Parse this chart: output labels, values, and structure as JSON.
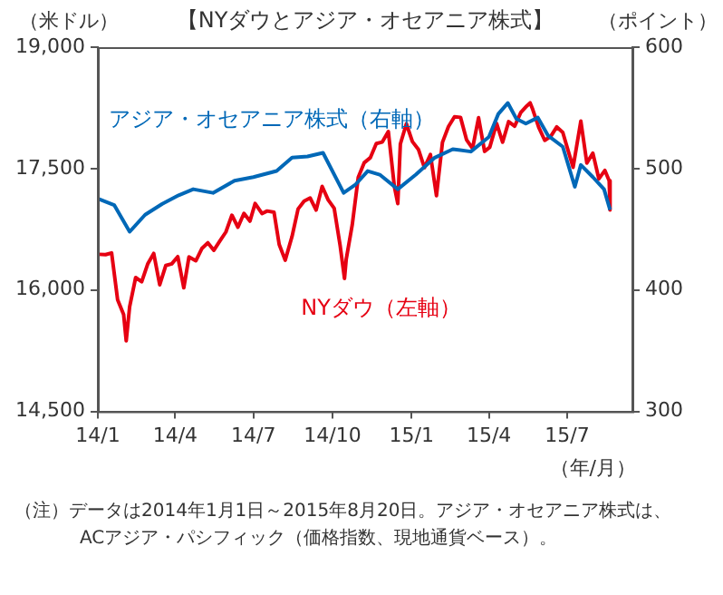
{
  "chart_data": {
    "type": "line",
    "title": "【NYダウとアジア・オセアニア株式】",
    "ylabel": "（米ドル）",
    "y2label": "（ポイント）",
    "xlabel": "（年/月）",
    "xlim": [
      "2014-01-01",
      "2015-09-15"
    ],
    "xticks": [
      {
        "value": "2014-01-01",
        "label": "14/1"
      },
      {
        "value": "2014-04-01",
        "label": "14/4"
      },
      {
        "value": "2014-07-01",
        "label": "14/7"
      },
      {
        "value": "2014-10-01",
        "label": "14/10"
      },
      {
        "value": "2015-01-01",
        "label": "15/1"
      },
      {
        "value": "2015-04-01",
        "label": "15/4"
      },
      {
        "value": "2015-07-01",
        "label": "15/7"
      }
    ],
    "ylim": [
      14500,
      19000
    ],
    "yticks": [
      {
        "value": 14500,
        "label": "14,500"
      },
      {
        "value": 16000,
        "label": "16,000"
      },
      {
        "value": 17500,
        "label": "17,500"
      },
      {
        "value": 19000,
        "label": "19,000"
      }
    ],
    "y2lim": [
      300,
      600
    ],
    "y2ticks": [
      300,
      400,
      500,
      600
    ],
    "grid": false,
    "legend": false,
    "marker": "none",
    "line_style": "solid",
    "series": [
      {
        "name": "NYダウ（左軸）",
        "color": "#e60012",
        "x": [
          "2014-01-02",
          "2014-01-10",
          "2014-01-17",
          "2014-01-24",
          "2014-01-31",
          "2014-02-03",
          "2014-02-07",
          "2014-02-14",
          "2014-02-21",
          "2014-02-28",
          "2014-03-07",
          "2014-03-14",
          "2014-03-21",
          "2014-03-28",
          "2014-04-04",
          "2014-04-11",
          "2014-04-17",
          "2014-04-25",
          "2014-05-02",
          "2014-05-09",
          "2014-05-16",
          "2014-05-23",
          "2014-05-30",
          "2014-06-06",
          "2014-06-13",
          "2014-06-20",
          "2014-06-27",
          "2014-07-03",
          "2014-07-11",
          "2014-07-17",
          "2014-07-25",
          "2014-07-31",
          "2014-08-07",
          "2014-08-15",
          "2014-08-22",
          "2014-08-29",
          "2014-09-05",
          "2014-09-12",
          "2014-09-19",
          "2014-09-26",
          "2014-10-03",
          "2014-10-10",
          "2014-10-15",
          "2014-10-17",
          "2014-10-24",
          "2014-10-31",
          "2014-11-07",
          "2014-11-14",
          "2014-11-21",
          "2014-11-28",
          "2014-12-05",
          "2014-12-12",
          "2014-12-16",
          "2014-12-19",
          "2014-12-26",
          "2015-01-02",
          "2015-01-09",
          "2015-01-16",
          "2015-01-23",
          "2015-01-30",
          "2015-02-06",
          "2015-02-13",
          "2015-02-20",
          "2015-02-27",
          "2015-03-06",
          "2015-03-13",
          "2015-03-20",
          "2015-03-27",
          "2015-04-02",
          "2015-04-10",
          "2015-04-17",
          "2015-04-24",
          "2015-05-01",
          "2015-05-08",
          "2015-05-15",
          "2015-05-19",
          "2015-05-22",
          "2015-05-29",
          "2015-06-05",
          "2015-06-12",
          "2015-06-19",
          "2015-06-26",
          "2015-07-02",
          "2015-07-08",
          "2015-07-17",
          "2015-07-24",
          "2015-07-31",
          "2015-08-07",
          "2015-08-14",
          "2015-08-19",
          "2015-08-20"
        ],
        "values": [
          16441,
          16437,
          16458,
          15879,
          15698,
          15373,
          15794,
          16154,
          16103,
          16321,
          16452,
          16065,
          16302,
          16323,
          16412,
          16027,
          16408,
          16361,
          16512,
          16583,
          16491,
          16606,
          16717,
          16924,
          16776,
          16947,
          16851,
          17068,
          16944,
          16976,
          16961,
          16563,
          16368,
          16663,
          17001,
          17098,
          17137,
          16988,
          17280,
          17113,
          17009,
          16544,
          16142,
          16380,
          16805,
          17391,
          17573,
          17634,
          17810,
          17828,
          17958,
          17280,
          17068,
          17804,
          18053,
          17833,
          17737,
          17512,
          17673,
          17165,
          17825,
          18019,
          18140,
          18133,
          17856,
          17749,
          18128,
          17713,
          17763,
          18057,
          17826,
          18080,
          18024,
          18191,
          18272,
          18312,
          18232,
          18010,
          17849,
          17898,
          18015,
          17947,
          17730,
          17515,
          18086,
          17568,
          17690,
          17373,
          17477,
          17349,
          16990
        ]
      },
      {
        "name": "アジア・オセアニア株式（右軸）",
        "color": "#0068b7",
        "axis": "y2",
        "x": [
          "2014-01-02",
          "2014-01-20",
          "2014-02-07",
          "2014-02-25",
          "2014-03-17",
          "2014-04-05",
          "2014-04-22",
          "2014-05-15",
          "2014-06-09",
          "2014-07-01",
          "2014-07-28",
          "2014-08-15",
          "2014-09-02",
          "2014-09-20",
          "2014-10-14",
          "2014-10-28",
          "2014-11-11",
          "2014-11-25",
          "2014-12-16",
          "2015-01-06",
          "2015-01-28",
          "2015-02-18",
          "2015-03-11",
          "2015-04-01",
          "2015-04-12",
          "2015-04-23",
          "2015-05-03",
          "2015-05-14",
          "2015-05-28",
          "2015-06-09",
          "2015-06-26",
          "2015-07-10",
          "2015-07-17",
          "2015-07-31",
          "2015-08-13",
          "2015-08-20"
        ],
        "values": [
          475,
          470,
          448,
          462,
          471,
          478,
          483,
          480,
          490,
          493,
          498,
          509,
          510,
          513,
          480,
          487,
          498,
          495,
          483,
          495,
          509,
          516,
          514,
          526,
          545,
          554,
          541,
          537,
          542,
          527,
          518,
          485,
          503,
          493,
          483,
          466
        ]
      }
    ],
    "annotations": [
      "（注）データは2014年1月1日～2015年8月20日。アジア・オセアニア株式は、",
      "ACアジア・パシフィック（価格指数、現地通貨ベース）。"
    ]
  }
}
